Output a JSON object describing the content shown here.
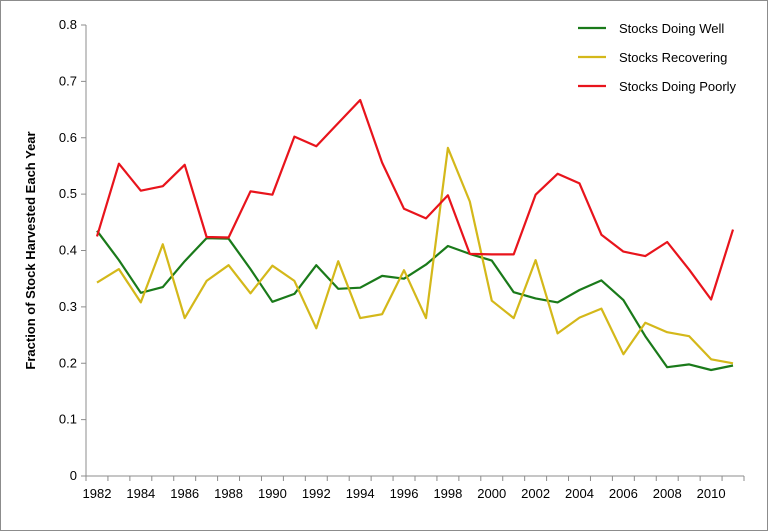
{
  "chart_data": {
    "type": "line",
    "title": "",
    "xlabel": "",
    "ylabel": "Fraction of Stock Harvested Each Year",
    "xlim": [
      1982,
      2011
    ],
    "ylim": [
      0,
      0.8
    ],
    "x_ticks": [
      "1982",
      "1984",
      "1986",
      "1988",
      "1990",
      "1992",
      "1994",
      "1996",
      "1998",
      "2000",
      "2002",
      "2004",
      "2006",
      "2008",
      "2010"
    ],
    "y_ticks": [
      "0",
      "0.1",
      "0.2",
      "0.3",
      "0.4",
      "0.5",
      "0.6",
      "0.7",
      "0.8"
    ],
    "grid": false,
    "legend_position": "top-right",
    "x": [
      1982,
      1983,
      1984,
      1985,
      1986,
      1987,
      1988,
      1989,
      1990,
      1991,
      1992,
      1993,
      1994,
      1995,
      1996,
      1997,
      1998,
      1999,
      2000,
      2001,
      2002,
      2003,
      2004,
      2005,
      2006,
      2007,
      2008,
      2009,
      2010,
      2011
    ],
    "series": [
      {
        "name": "Stocks Doing Well",
        "color": "#1a7a1a",
        "values": [
          0.435,
          0.383,
          0.325,
          0.335,
          0.381,
          0.422,
          0.421,
          0.367,
          0.309,
          0.323,
          0.374,
          0.332,
          0.334,
          0.355,
          0.35,
          0.375,
          0.408,
          0.394,
          0.382,
          0.326,
          0.315,
          0.308,
          0.33,
          0.347,
          0.312,
          0.248,
          0.193,
          0.198,
          0.188,
          0.196
        ]
      },
      {
        "name": "Stocks Recovering",
        "color": "#d4b81a",
        "values": [
          0.343,
          0.367,
          0.308,
          0.411,
          0.28,
          0.346,
          0.374,
          0.324,
          0.373,
          0.346,
          0.262,
          0.381,
          0.28,
          0.287,
          0.365,
          0.28,
          0.582,
          0.487,
          0.311,
          0.28,
          0.383,
          0.253,
          0.281,
          0.297,
          0.216,
          0.272,
          0.255,
          0.248,
          0.207,
          0.2
        ]
      },
      {
        "name": "Stocks Doing Poorly",
        "color": "#e8141c",
        "values": [
          0.425,
          0.554,
          0.506,
          0.514,
          0.552,
          0.424,
          0.423,
          0.505,
          0.499,
          0.602,
          0.585,
          0.626,
          0.667,
          0.556,
          0.474,
          0.457,
          0.498,
          0.394,
          0.393,
          0.393,
          0.499,
          0.536,
          0.519,
          0.428,
          0.398,
          0.39,
          0.415,
          0.366,
          0.313,
          0.437
        ]
      }
    ]
  }
}
